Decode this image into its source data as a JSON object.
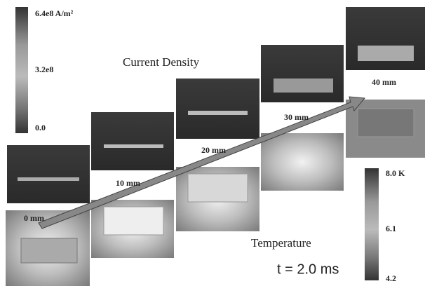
{
  "current_density_bar": {
    "labels": [
      "6.4e8 A/m²",
      "3.2e8",
      "0.0"
    ]
  },
  "temperature_bar": {
    "labels": [
      "8.0 K",
      "6.1",
      "4.2"
    ]
  },
  "current_density_title": "Current Density",
  "temperature_title": "Temperature",
  "time_label": "t = 2.0 ms",
  "positions": [
    "0 mm",
    "10 mm",
    "20 mm",
    "30 mm",
    "40 mm"
  ]
}
